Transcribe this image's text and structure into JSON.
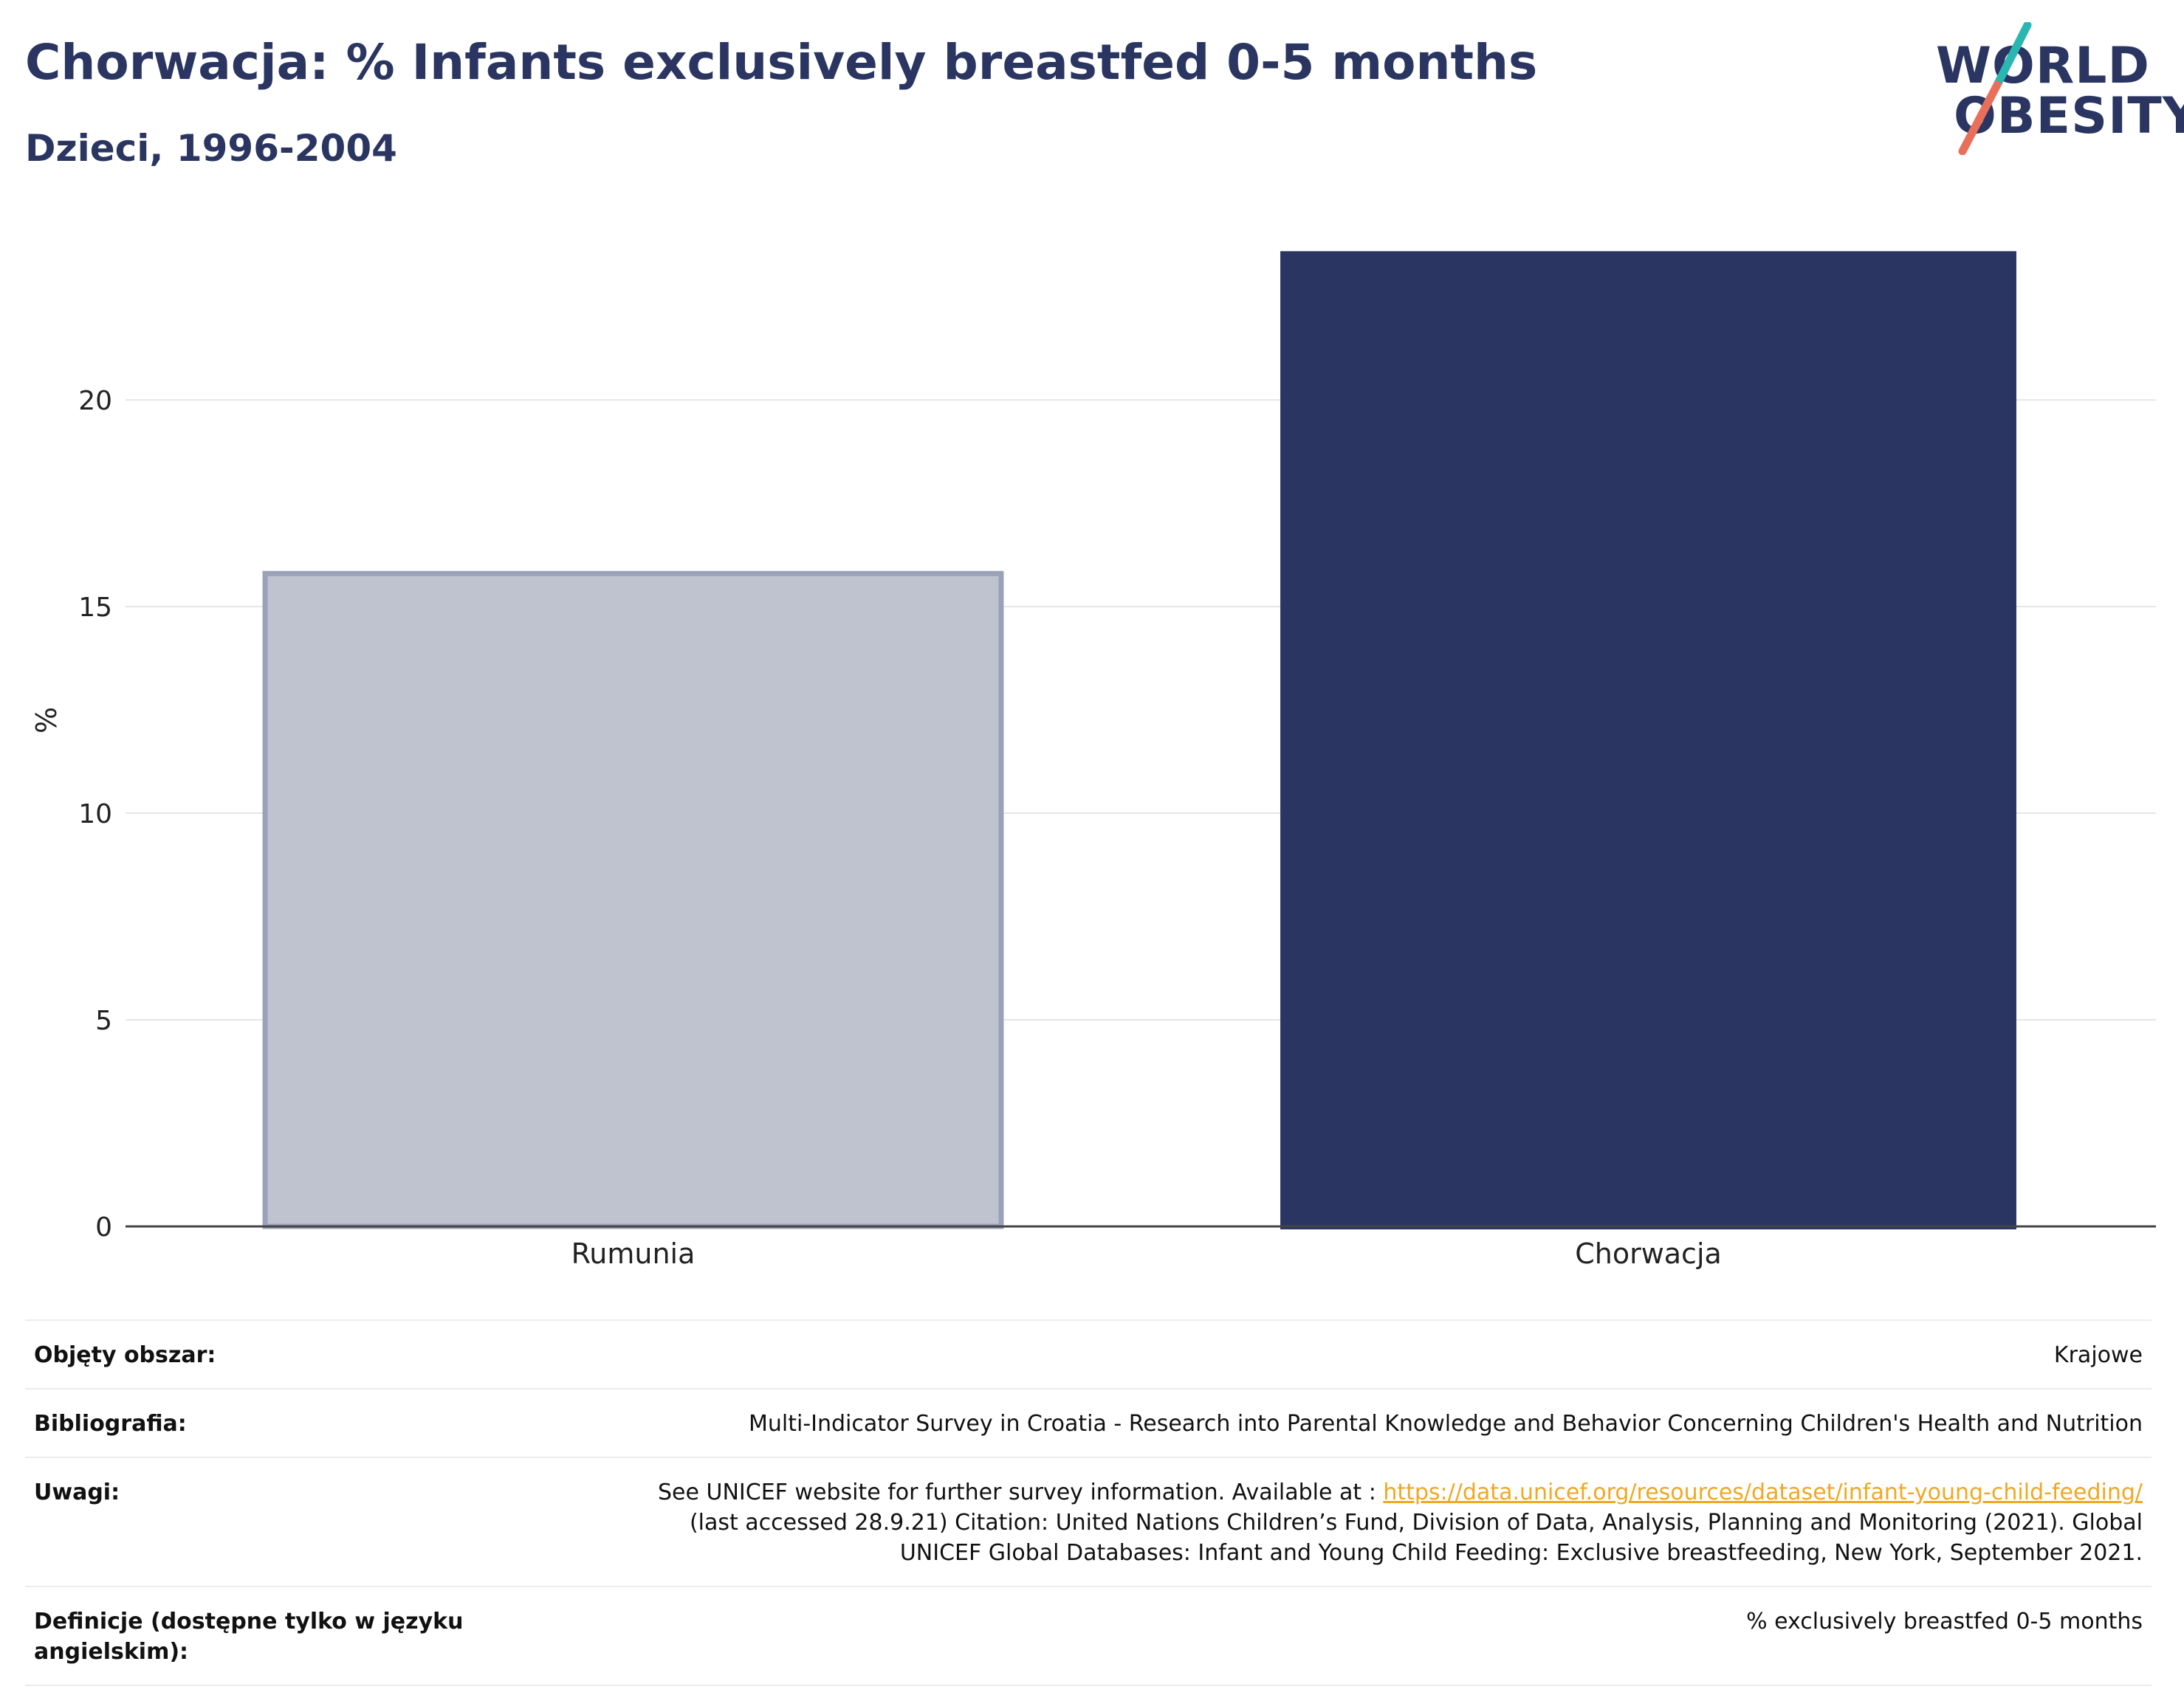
{
  "header": {
    "title": "Chorwacja: % Infants exclusively breastfed 0-5 months",
    "subtitle": "Dzieci, 1996-2004"
  },
  "logo": {
    "line1": "WORLD",
    "line2": "OBESITY",
    "colors": {
      "text": "#2a3661",
      "slash_top": "#2bb7b1",
      "slash_bottom": "#e8705a"
    }
  },
  "chart_data": {
    "type": "bar",
    "categories": [
      "Rumunia",
      "Chorwacja"
    ],
    "values": [
      15.8,
      23.6
    ],
    "title": "",
    "xlabel": "",
    "ylabel": "%",
    "ylim": [
      0,
      24.5
    ],
    "yticks": [
      0,
      5,
      10,
      15,
      20
    ],
    "grid": true,
    "colors": {
      "Rumunia": "#bfc3cf",
      "Rumunia_border": "#9aa2b8",
      "Chorwacja": "#2a3661",
      "gridline": "#e6e6e6",
      "axis": "#444444"
    }
  },
  "meta": {
    "rows": [
      {
        "label": "Objęty obszar:",
        "value": "Krajowe"
      },
      {
        "label": "Bibliografia:",
        "value": "Multi-Indicator Survey in Croatia - Research into Parental Knowledge and Behavior Concerning Children's Health and Nutrition"
      },
      {
        "label": "Uwagi:",
        "value_prefix": "See UNICEF website for further survey information. Available at : ",
        "link": "https://data.unicef.org/resources/dataset/infant-young-child-feeding/",
        "value_line2": "(last accessed 28.9.21) Citation: United Nations Children’s Fund, Division of Data, Analysis, Planning and Monitoring (2021). Global",
        "value_line3": "UNICEF Global Databases: Infant and Young Child Feeding: Exclusive breastfeeding, New York, September 2021."
      },
      {
        "label": "Definicje (dostępne tylko w języku angielskim):",
        "value": "% exclusively breastfed 0-5 months"
      }
    ]
  }
}
